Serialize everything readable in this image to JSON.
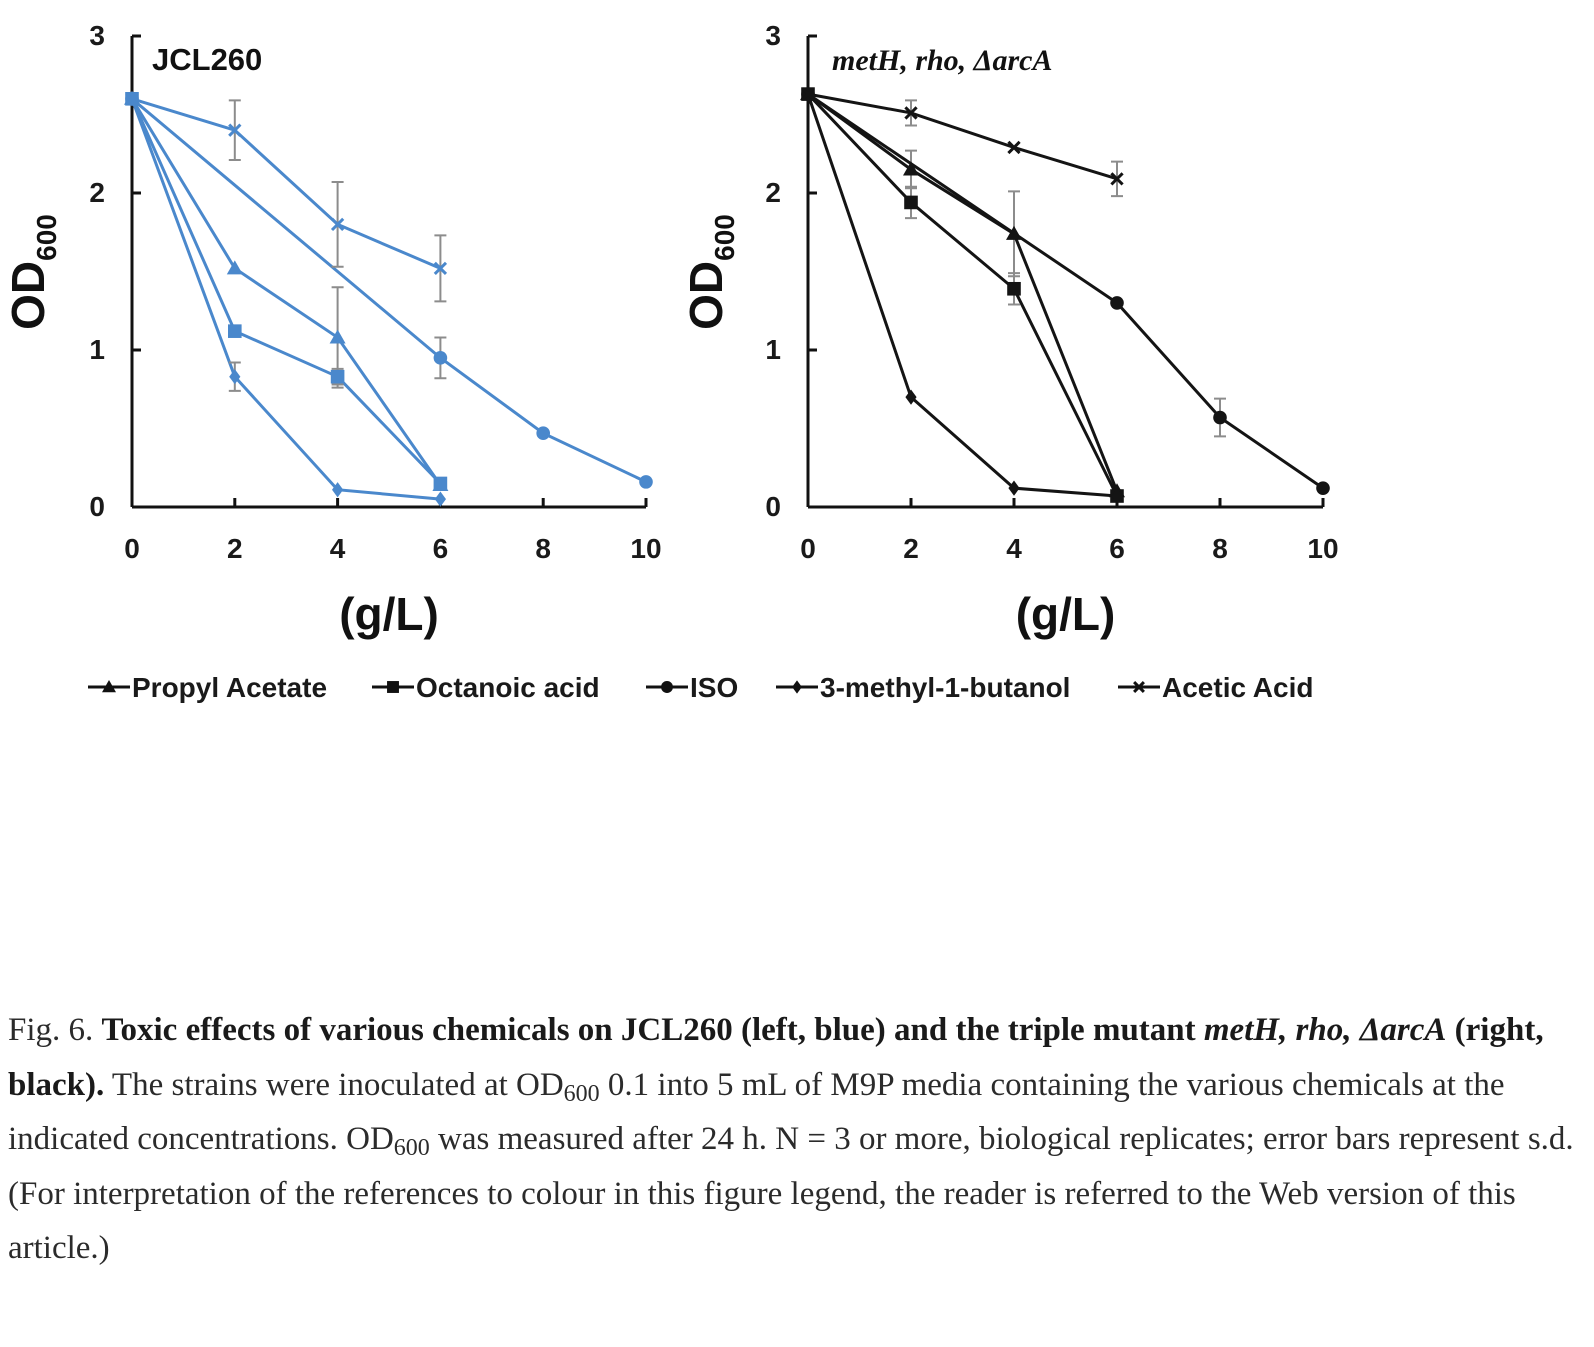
{
  "chart_data": [
    {
      "type": "line",
      "title": "JCL260",
      "color": "#4a88cc",
      "xlabel": "(g/L)",
      "ylabel": "OD",
      "ylabel_sub": "600",
      "xlim": [
        0,
        10
      ],
      "ylim": [
        0,
        3
      ],
      "xticks": [
        "0",
        "2",
        "4",
        "6",
        "8",
        "10"
      ],
      "yticks": [
        "0",
        "1",
        "2",
        "3"
      ],
      "series": [
        {
          "name": "Propyl Acetate",
          "marker": "triangle",
          "x": [
            0,
            2,
            4,
            6
          ],
          "y": [
            2.6,
            1.52,
            1.08,
            0.14
          ],
          "err": [
            0,
            0,
            0.32,
            0
          ]
        },
        {
          "name": "Octanoic acid",
          "marker": "square",
          "x": [
            0,
            2,
            4,
            6
          ],
          "y": [
            2.6,
            1.12,
            0.83,
            0.15
          ],
          "err": [
            0,
            0,
            0.05,
            0
          ]
        },
        {
          "name": "ISO",
          "marker": "circle",
          "x": [
            0,
            6,
            8,
            10
          ],
          "y": [
            2.6,
            0.95,
            0.47,
            0.16
          ],
          "err": [
            0,
            0.13,
            0,
            0
          ]
        },
        {
          "name": "3-methyl-1-butanol",
          "marker": "diamond",
          "x": [
            0,
            2,
            4,
            6
          ],
          "y": [
            2.6,
            0.83,
            0.11,
            0.05
          ],
          "err": [
            0,
            0.09,
            0,
            0
          ]
        },
        {
          "name": "Acetic Acid",
          "marker": "x",
          "x": [
            0,
            2,
            4,
            6
          ],
          "y": [
            2.6,
            2.4,
            1.8,
            1.52
          ],
          "err": [
            0,
            0.19,
            0.27,
            0.21
          ]
        }
      ]
    },
    {
      "type": "line",
      "title": "metH, rho, ΔarcA",
      "color": "#141414",
      "xlabel": "(g/L)",
      "ylabel": "OD",
      "ylabel_sub": "600",
      "xlim": [
        0,
        10
      ],
      "ylim": [
        0,
        3
      ],
      "xticks": [
        "0",
        "2",
        "4",
        "6",
        "8",
        "10"
      ],
      "yticks": [
        "0",
        "1",
        "2",
        "3"
      ],
      "series": [
        {
          "name": "Propyl Acetate",
          "marker": "triangle",
          "x": [
            0,
            2,
            4,
            6
          ],
          "y": [
            2.63,
            2.15,
            1.74,
            0.1
          ],
          "err": [
            0,
            0.12,
            0.27,
            0
          ]
        },
        {
          "name": "Octanoic acid",
          "marker": "square",
          "x": [
            0,
            2,
            4,
            6
          ],
          "y": [
            2.63,
            1.94,
            1.39,
            0.07
          ],
          "err": [
            0,
            0.1,
            0.1,
            0
          ]
        },
        {
          "name": "ISO",
          "marker": "circle",
          "x": [
            0,
            6,
            8,
            10
          ],
          "y": [
            2.63,
            1.3,
            0.57,
            0.12
          ],
          "err": [
            0,
            0,
            0.12,
            0
          ]
        },
        {
          "name": "3-methyl-1-butanol",
          "marker": "diamond",
          "x": [
            0,
            2,
            4,
            6
          ],
          "y": [
            2.63,
            0.7,
            0.12,
            0.07
          ],
          "err": [
            0,
            0,
            0,
            0
          ]
        },
        {
          "name": "Acetic Acid",
          "marker": "x",
          "x": [
            0,
            2,
            4,
            6
          ],
          "y": [
            2.63,
            2.51,
            2.29,
            2.09
          ],
          "err": [
            0,
            0.08,
            0,
            0.11
          ]
        }
      ]
    }
  ],
  "legend": [
    {
      "label": "Propyl Acetate",
      "marker": "triangle"
    },
    {
      "label": "Octanoic acid",
      "marker": "square"
    },
    {
      "label": "ISO",
      "marker": "circle"
    },
    {
      "label": "3-methyl-1-butanol",
      "marker": "diamond"
    },
    {
      "label": "Acetic Acid",
      "marker": "x"
    }
  ],
  "caption": {
    "prefix": "Fig. 6. ",
    "bold_1": "Toxic effects of various chemicals on JCL260 (left, blue) and the triple mutant ",
    "bold_italic_1": "metH, rho, ΔarcA",
    "bold_2": " (right, black).",
    "text_1": " The strains were inoculated at OD",
    "sub_1": "600",
    "text_2": " 0.1 into 5 mL of M9P media containing the various chemicals at the indicated concentrations. OD",
    "sub_2": "600",
    "text_3": " was measured after 24 h. N = 3 or more, biological replicates; error bars represent s.d. (For interpretation of the references to colour in this figure legend, the reader is referred to the Web version of this article.)"
  }
}
